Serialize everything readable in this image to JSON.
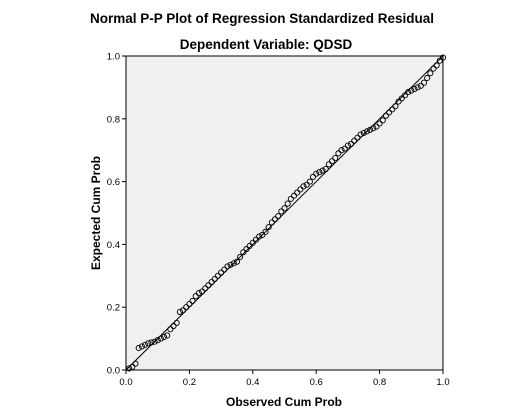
{
  "chart_data": {
    "type": "scatter",
    "title": "Normal P-P Plot of Regression Standardized Residual",
    "subtitle": "Dependent Variable: QDSD",
    "xlabel": "Observed Cum Prob",
    "ylabel": "Expected Cum Prob",
    "xlim": [
      0,
      1
    ],
    "ylim": [
      0,
      1
    ],
    "x_ticks": [
      "0.0",
      "0.2",
      "0.4",
      "0.6",
      "0.8",
      "1.0"
    ],
    "y_ticks": [
      "0.0",
      "0.2",
      "0.4",
      "0.6",
      "0.8",
      "1.0"
    ],
    "reference_line": [
      [
        0,
        0
      ],
      [
        1,
        1
      ]
    ],
    "grid": false,
    "plot_background": "#f0f0f0",
    "marker_color": "#000000",
    "series": [
      {
        "marker": "open-circle",
        "points": [
          [
            0.01,
            0.005
          ],
          [
            0.02,
            0.01
          ],
          [
            0.03,
            0.02
          ],
          [
            0.04,
            0.07
          ],
          [
            0.05,
            0.075
          ],
          [
            0.06,
            0.08
          ],
          [
            0.07,
            0.085
          ],
          [
            0.08,
            0.088
          ],
          [
            0.09,
            0.09
          ],
          [
            0.1,
            0.095
          ],
          [
            0.11,
            0.1
          ],
          [
            0.12,
            0.105
          ],
          [
            0.13,
            0.11
          ],
          [
            0.14,
            0.13
          ],
          [
            0.15,
            0.14
          ],
          [
            0.16,
            0.15
          ],
          [
            0.17,
            0.185
          ],
          [
            0.18,
            0.19
          ],
          [
            0.19,
            0.2
          ],
          [
            0.2,
            0.21
          ],
          [
            0.21,
            0.22
          ],
          [
            0.22,
            0.235
          ],
          [
            0.23,
            0.245
          ],
          [
            0.24,
            0.25
          ],
          [
            0.25,
            0.26
          ],
          [
            0.26,
            0.27
          ],
          [
            0.27,
            0.28
          ],
          [
            0.28,
            0.29
          ],
          [
            0.29,
            0.3
          ],
          [
            0.3,
            0.31
          ],
          [
            0.31,
            0.32
          ],
          [
            0.32,
            0.33
          ],
          [
            0.33,
            0.335
          ],
          [
            0.34,
            0.34
          ],
          [
            0.35,
            0.345
          ],
          [
            0.36,
            0.36
          ],
          [
            0.37,
            0.375
          ],
          [
            0.38,
            0.385
          ],
          [
            0.39,
            0.395
          ],
          [
            0.4,
            0.405
          ],
          [
            0.41,
            0.415
          ],
          [
            0.42,
            0.425
          ],
          [
            0.43,
            0.43
          ],
          [
            0.44,
            0.44
          ],
          [
            0.45,
            0.455
          ],
          [
            0.46,
            0.47
          ],
          [
            0.47,
            0.48
          ],
          [
            0.48,
            0.49
          ],
          [
            0.49,
            0.505
          ],
          [
            0.5,
            0.515
          ],
          [
            0.51,
            0.53
          ],
          [
            0.52,
            0.545
          ],
          [
            0.53,
            0.555
          ],
          [
            0.54,
            0.565
          ],
          [
            0.55,
            0.575
          ],
          [
            0.56,
            0.585
          ],
          [
            0.57,
            0.59
          ],
          [
            0.58,
            0.6
          ],
          [
            0.59,
            0.615
          ],
          [
            0.6,
            0.625
          ],
          [
            0.61,
            0.63
          ],
          [
            0.62,
            0.635
          ],
          [
            0.63,
            0.64
          ],
          [
            0.64,
            0.655
          ],
          [
            0.65,
            0.665
          ],
          [
            0.66,
            0.675
          ],
          [
            0.67,
            0.69
          ],
          [
            0.68,
            0.7
          ],
          [
            0.69,
            0.705
          ],
          [
            0.7,
            0.715
          ],
          [
            0.71,
            0.72
          ],
          [
            0.72,
            0.73
          ],
          [
            0.73,
            0.74
          ],
          [
            0.74,
            0.75
          ],
          [
            0.75,
            0.755
          ],
          [
            0.76,
            0.76
          ],
          [
            0.77,
            0.765
          ],
          [
            0.78,
            0.77
          ],
          [
            0.79,
            0.775
          ],
          [
            0.8,
            0.785
          ],
          [
            0.81,
            0.795
          ],
          [
            0.82,
            0.81
          ],
          [
            0.83,
            0.82
          ],
          [
            0.84,
            0.83
          ],
          [
            0.85,
            0.84
          ],
          [
            0.86,
            0.855
          ],
          [
            0.87,
            0.865
          ],
          [
            0.88,
            0.875
          ],
          [
            0.89,
            0.885
          ],
          [
            0.9,
            0.89
          ],
          [
            0.91,
            0.895
          ],
          [
            0.92,
            0.9
          ],
          [
            0.93,
            0.905
          ],
          [
            0.94,
            0.915
          ],
          [
            0.95,
            0.93
          ],
          [
            0.96,
            0.945
          ],
          [
            0.97,
            0.96
          ],
          [
            0.98,
            0.97
          ],
          [
            0.99,
            0.985
          ],
          [
            1.0,
            0.995
          ]
        ]
      }
    ]
  }
}
